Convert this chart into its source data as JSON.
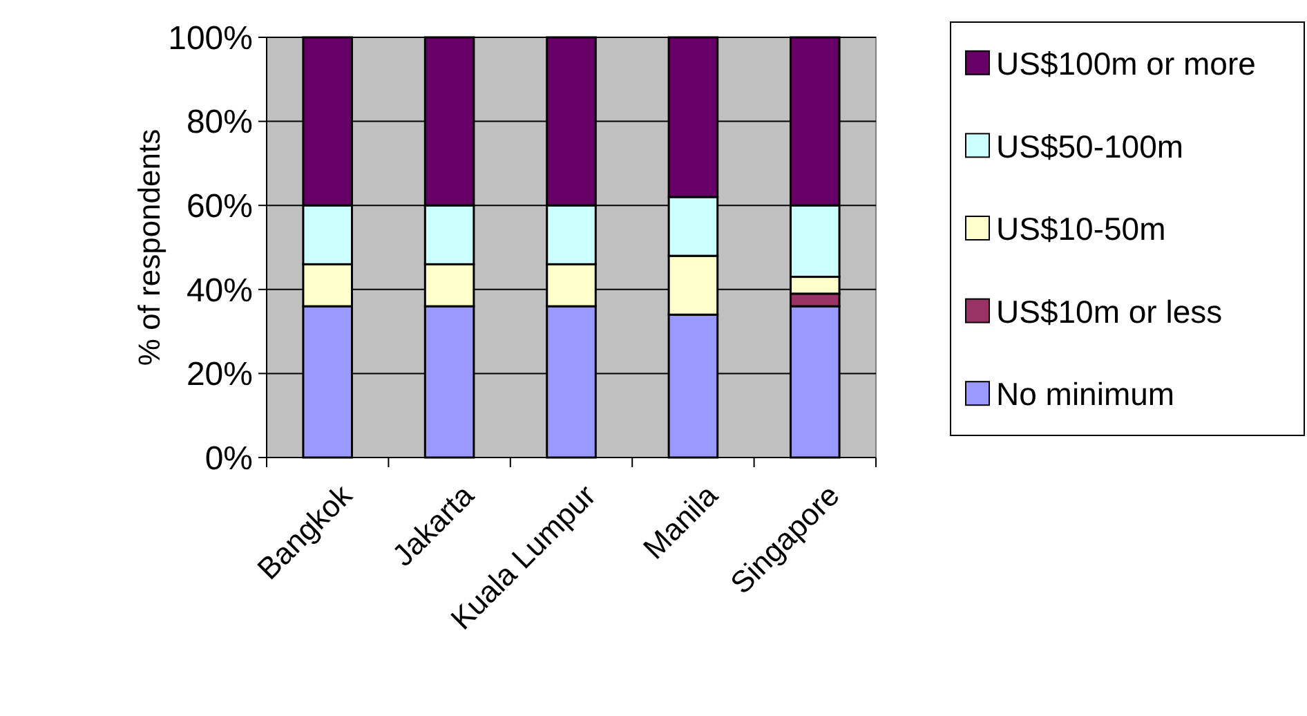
{
  "chart_data": {
    "type": "bar",
    "stacked": true,
    "ylabel": "% of respondents",
    "categories": [
      "Bangkok",
      "Jakarta",
      "Kuala Lumpur",
      "Manila",
      "Singapore"
    ],
    "series": [
      {
        "name": "No minimum",
        "color": "#9999ff",
        "values": [
          36,
          36,
          36,
          34,
          36
        ]
      },
      {
        "name": "US$10m or less",
        "color": "#993366",
        "values": [
          0,
          0,
          0,
          0,
          3
        ]
      },
      {
        "name": "US$10-50m",
        "color": "#ffffcc",
        "values": [
          10,
          10,
          10,
          14,
          4
        ]
      },
      {
        "name": "US$50-100m",
        "color": "#ccffff",
        "values": [
          14,
          14,
          14,
          14,
          17
        ]
      },
      {
        "name": "US$100m or more",
        "color": "#660066",
        "values": [
          40,
          40,
          40,
          38,
          40
        ]
      }
    ],
    "ylim": [
      0,
      100
    ],
    "yticks": [
      {
        "value": 0,
        "label": "0%"
      },
      {
        "value": 20,
        "label": "20%"
      },
      {
        "value": 40,
        "label": "40%"
      },
      {
        "value": 60,
        "label": "60%"
      },
      {
        "value": 80,
        "label": "80%"
      },
      {
        "value": 100,
        "label": "100%"
      }
    ],
    "grid": "y",
    "legend": "right"
  }
}
